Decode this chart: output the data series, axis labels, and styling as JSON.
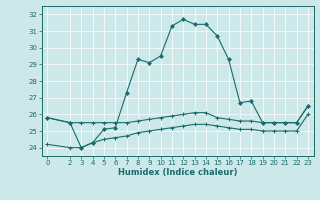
{
  "title": "",
  "xlabel": "Humidex (Indice chaleur)",
  "bg_color": "#cce8e8",
  "grid_color": "#ffffff",
  "line_color": "#1a6b6b",
  "xlim": [
    -0.5,
    23.5
  ],
  "ylim": [
    23.5,
    32.5
  ],
  "xticks": [
    0,
    2,
    3,
    4,
    5,
    6,
    7,
    8,
    9,
    10,
    11,
    12,
    13,
    14,
    15,
    16,
    17,
    18,
    19,
    20,
    21,
    22,
    23
  ],
  "yticks": [
    24,
    25,
    26,
    27,
    28,
    29,
    30,
    31,
    32
  ],
  "line1_x": [
    0,
    2,
    3,
    4,
    5,
    6,
    7,
    8,
    9,
    10,
    11,
    12,
    13,
    14,
    15,
    16,
    17,
    18,
    19,
    20,
    21,
    22,
    23
  ],
  "line1_y": [
    25.8,
    25.5,
    24.0,
    24.3,
    25.1,
    25.2,
    27.3,
    29.3,
    29.1,
    29.5,
    31.3,
    31.7,
    31.4,
    31.4,
    30.7,
    29.3,
    26.7,
    26.8,
    25.5,
    25.5,
    25.5,
    25.5,
    26.5
  ],
  "line2_x": [
    0,
    2,
    3,
    4,
    5,
    6,
    7,
    8,
    9,
    10,
    11,
    12,
    13,
    14,
    15,
    16,
    17,
    18,
    19,
    20,
    21,
    22,
    23
  ],
  "line2_y": [
    25.8,
    25.5,
    25.5,
    25.5,
    25.5,
    25.5,
    25.5,
    25.6,
    25.7,
    25.8,
    25.9,
    26.0,
    26.1,
    26.1,
    25.8,
    25.7,
    25.6,
    25.6,
    25.5,
    25.5,
    25.5,
    25.5,
    26.5
  ],
  "line3_x": [
    0,
    2,
    3,
    4,
    5,
    6,
    7,
    8,
    9,
    10,
    11,
    12,
    13,
    14,
    15,
    16,
    17,
    18,
    19,
    20,
    21,
    22,
    23
  ],
  "line3_y": [
    24.2,
    24.0,
    24.0,
    24.3,
    24.5,
    24.6,
    24.7,
    24.9,
    25.0,
    25.1,
    25.2,
    25.3,
    25.4,
    25.4,
    25.3,
    25.2,
    25.1,
    25.1,
    25.0,
    25.0,
    25.0,
    25.0,
    26.0
  ],
  "tick_fontsize": 5,
  "xlabel_fontsize": 6
}
